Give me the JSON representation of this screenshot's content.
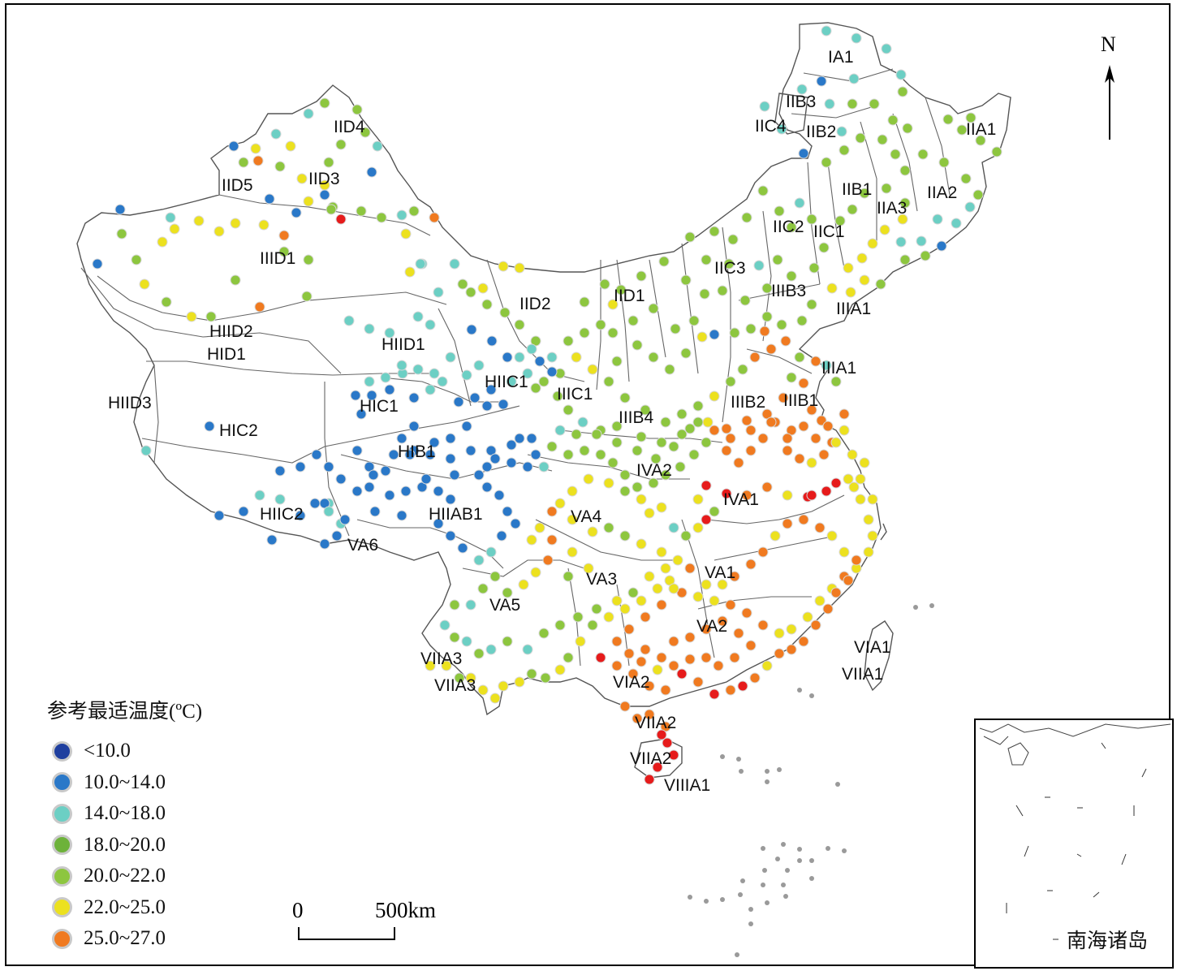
{
  "legend": {
    "title": "参考最适温度(ºC)",
    "items": [
      {
        "label": "<10.0",
        "color": "#1f3f9f"
      },
      {
        "label": "10.0~14.0",
        "color": "#2a78c8"
      },
      {
        "label": "14.0~18.0",
        "color": "#6ccfc4"
      },
      {
        "label": "18.0~20.0",
        "color": "#6db23a"
      },
      {
        "label": "20.0~22.0",
        "color": "#8dc63f"
      },
      {
        "label": "22.0~25.0",
        "color": "#ece11f"
      },
      {
        "label": "25.0~27.0",
        "color": "#f07a20"
      }
    ]
  },
  "extra_color": {
    ">27.0": "#e61b1b",
    "islands": "#9a9a9a"
  },
  "scale_bar": {
    "start": "0",
    "end": "500km"
  },
  "north_arrow": {
    "label": "N"
  },
  "inset": {
    "label": "南海诸岛"
  },
  "region_labels": [
    "IA1",
    "IIB3",
    "IIC4",
    "IIB2",
    "IID4",
    "IIA1",
    "IID5",
    "IID3",
    "IIB1",
    "IIA2",
    "IIA3",
    "IIC2",
    "IIC1",
    "IIID1",
    "IIC3",
    "IID2",
    "IID1",
    "IIIB3",
    "IIIA1",
    "HIID2",
    "HID1",
    "HIID1",
    "IIIA1",
    "HIIC1",
    "IIIC1",
    "HIID3",
    "HIC1",
    "IIIB4",
    "IIIB2",
    "IIIB1",
    "HIC2",
    "HIB1",
    "IVA2",
    "IVA1",
    "HIIC2",
    "HIIAB1",
    "VA4",
    "VA6",
    "VA3",
    "VA1",
    "VA5",
    "VA2",
    "VIA1",
    "VIIA3",
    "VIIA1",
    "VIIA3",
    "VIA2",
    "VIIA2",
    "VIIA2",
    "VIIIA1"
  ]
}
